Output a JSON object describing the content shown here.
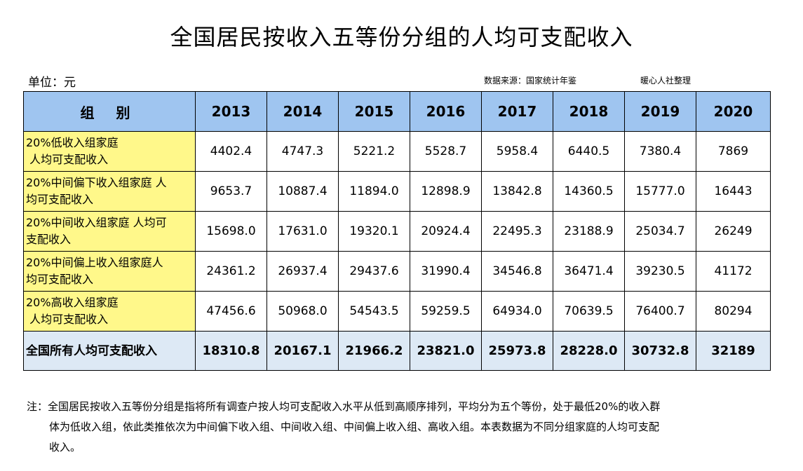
{
  "title": "全国居民按收入五等份分组的人均可支配收入",
  "unit": "单位：元",
  "source": "数据来源：国家统计年鉴",
  "organizer": "暖心人社整理",
  "table": {
    "group_header": "组 别",
    "years": [
      "2013",
      "2014",
      "2015",
      "2016",
      "2017",
      "2018",
      "2019",
      "2020"
    ],
    "rows": [
      {
        "label_lines": [
          "20%低收入组家庭",
          " 人均可支配收入"
        ],
        "values": [
          "4402.4",
          "4747.3",
          "5221.2",
          "5528.7",
          "5958.4",
          "6440.5",
          "7380.4",
          "7869"
        ]
      },
      {
        "label_lines": [
          "20%中间偏下收入组家庭 人",
          "均可支配收入"
        ],
        "values": [
          "9653.7",
          "10887.4",
          "11894.0",
          "12898.9",
          "13842.8",
          "14360.5",
          "15777.0",
          "16443"
        ]
      },
      {
        "label_lines": [
          "20%中间收入组家庭 人均可",
          "支配收入"
        ],
        "values": [
          "15698.0",
          "17631.0",
          "19320.1",
          "20924.4",
          "22495.3",
          "23188.9",
          "25034.7",
          "26249"
        ]
      },
      {
        "label_lines": [
          "20%中间偏上收入组家庭人",
          "均可支配收入"
        ],
        "values": [
          "24361.2",
          "26937.4",
          "29437.6",
          "31990.4",
          "34546.8",
          "36471.4",
          "39230.5",
          "41172"
        ]
      },
      {
        "label_lines": [
          "20%高收入组家庭",
          " 人均可支配收入"
        ],
        "values": [
          "47456.6",
          "50968.0",
          "54543.5",
          "59259.5",
          "64934.0",
          "70639.5",
          "76400.7",
          "80294"
        ]
      }
    ],
    "total": {
      "label": "全国所有人均可支配收入",
      "values": [
        "18310.8",
        "20167.1",
        "21966.2",
        "23821.0",
        "25973.8",
        "28228.0",
        "30732.8",
        "32189"
      ]
    }
  },
  "note": {
    "line1": "注：全国居民按收入五等份分组是指将所有调查户按人均可支配收入水平从低到高顺序排列，平均分为五个等份，处于最低20%的收入群",
    "line2": "体为低收入组，依此类推依次为中间偏下收入组、中间收入组、中间偏上收入组、高收入组。本表数据为不同分组家庭的人均可支配",
    "line3": "收入。"
  }
}
